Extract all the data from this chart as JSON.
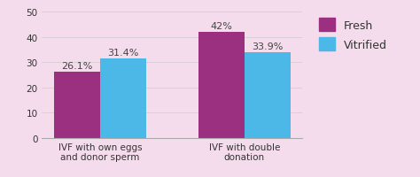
{
  "categories": [
    "IVF with own eggs\nand donor sperm",
    "IVF with double\ndonation"
  ],
  "fresh_values": [
    26.1,
    42.0
  ],
  "vitrified_values": [
    31.4,
    33.9
  ],
  "fresh_labels": [
    "26.1%",
    "42%"
  ],
  "vitrified_labels": [
    "31.4%",
    "33.9%"
  ],
  "fresh_color": "#9B3080",
  "vitrified_color": "#4BB8E8",
  "background_color": "#F5DCEC",
  "ylim": [
    0,
    50
  ],
  "yticks": [
    0,
    10,
    20,
    30,
    40,
    50
  ],
  "bar_width": 0.32,
  "legend_labels": [
    "Fresh",
    "Vitrified"
  ],
  "tick_fontsize": 7.5,
  "legend_fontsize": 9,
  "value_fontsize": 8
}
